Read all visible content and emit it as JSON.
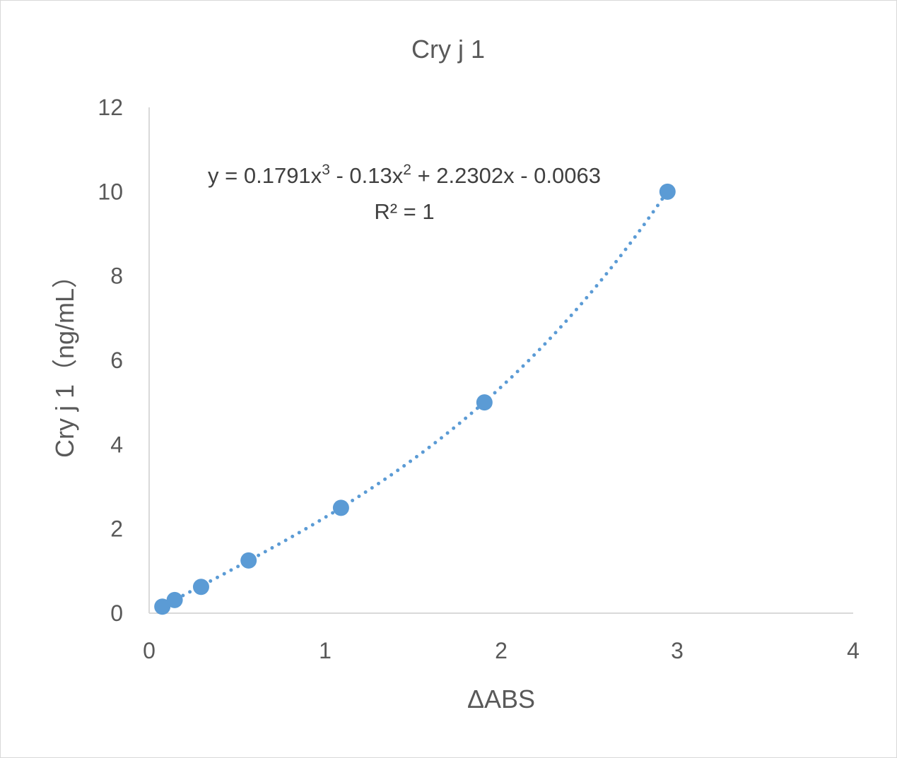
{
  "chart_data": {
    "type": "scatter",
    "title": "Cry j 1",
    "xlabel": "ΔABS",
    "ylabel": "Cry j 1（ng/mL）",
    "xlim": [
      0,
      4
    ],
    "ylim": [
      0,
      12
    ],
    "x_ticks": [
      "0",
      "1",
      "2",
      "3",
      "4"
    ],
    "y_ticks": [
      "0",
      "2",
      "4",
      "6",
      "8",
      "10",
      "12"
    ],
    "grid": false,
    "series": [
      {
        "color": "#5b9bd5",
        "points": [
          {
            "x": 0.075,
            "y": 0.156
          },
          {
            "x": 0.145,
            "y": 0.313
          },
          {
            "x": 0.295,
            "y": 0.625
          },
          {
            "x": 0.565,
            "y": 1.25
          },
          {
            "x": 1.09,
            "y": 2.5
          },
          {
            "x": 1.905,
            "y": 5
          },
          {
            "x": 2.945,
            "y": 10
          }
        ]
      }
    ],
    "trendline": {
      "type": "polynomial",
      "order": 3,
      "style": "dotted",
      "color": "#5b9bd5",
      "coefficients": [
        0.1791,
        -0.13,
        2.2302,
        -0.0063
      ],
      "equation": {
        "prefix": "y = 0.1791x",
        "exp1": "3",
        "middle": " - 0.13x",
        "exp2": "2",
        "suffix": " + 2.2302x - 0.0063"
      },
      "r2_label": "R² = 1"
    },
    "axis_color": "#d9d9d9"
  }
}
